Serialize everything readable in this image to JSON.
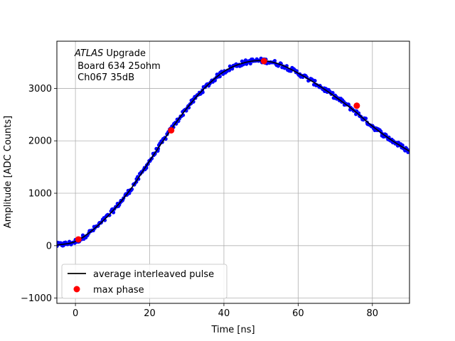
{
  "chart_data": {
    "type": "scatter",
    "xlabel": "Time [ns]",
    "ylabel": "Amplitude [ADC Counts]",
    "xlim": [
      -5,
      90
    ],
    "ylim": [
      -1100,
      3900
    ],
    "xticks": [
      0,
      20,
      40,
      60,
      80
    ],
    "yticks": [
      -1000,
      0,
      1000,
      2000,
      3000
    ],
    "grid": true,
    "legend_position": "lower-left",
    "annotation": {
      "line1_italic": "ATLAS",
      "line1_rest": " Upgrade",
      "line2": " Board 634 25ohm",
      "line3": " Ch067 35dB"
    },
    "series": [
      {
        "name": "average interleaved pulse",
        "kind": "line",
        "color": "#000000",
        "x": [
          -5,
          0,
          5,
          10,
          15,
          20,
          25,
          30,
          35,
          40,
          45,
          50,
          55,
          60,
          65,
          70,
          75,
          80,
          85,
          90
        ],
        "y": [
          10,
          80,
          320,
          660,
          1090,
          1620,
          2140,
          2620,
          3020,
          3320,
          3480,
          3530,
          3460,
          3290,
          3080,
          2840,
          2580,
          2280,
          2020,
          1800
        ]
      },
      {
        "name": "",
        "kind": "samples",
        "color": "#0000ff",
        "x_range": [
          -5,
          90
        ],
        "count": 380,
        "spread": 45
      },
      {
        "name": "max phase",
        "kind": "points",
        "color": "#ff0000",
        "x": [
          0.8,
          25.8,
          50.8,
          75.8
        ],
        "y": [
          120,
          2200,
          3520,
          2670
        ]
      }
    ]
  }
}
